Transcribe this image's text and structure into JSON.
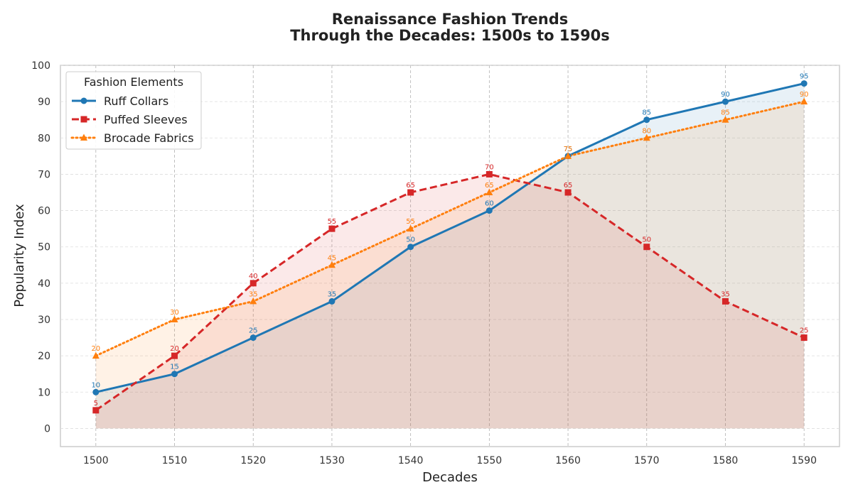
{
  "chart_data": {
    "type": "line",
    "title_lines": [
      "Renaissance Fashion Trends",
      "Through the Decades: 1500s to 1590s"
    ],
    "xlabel": "Decades",
    "ylabel": "Popularity Index",
    "x": [
      1500,
      1510,
      1520,
      1530,
      1540,
      1550,
      1560,
      1570,
      1580,
      1590
    ],
    "xlim": [
      1495.5,
      1594.5
    ],
    "ylim": [
      -5,
      100
    ],
    "yticks": [
      0,
      10,
      20,
      30,
      40,
      50,
      60,
      70,
      80,
      90,
      100
    ],
    "grid": true,
    "legend": {
      "title": "Fashion Elements",
      "placement": "top-left"
    },
    "series": [
      {
        "name": "Ruff Collars",
        "values": [
          10,
          15,
          25,
          35,
          50,
          60,
          75,
          85,
          90,
          95
        ],
        "color": "#1f77b4",
        "line_style": "solid",
        "marker": "circle",
        "fill_opacity": 0.1
      },
      {
        "name": "Puffed Sleeves",
        "values": [
          5,
          20,
          40,
          55,
          65,
          70,
          65,
          50,
          35,
          25
        ],
        "color": "#d62728",
        "line_style": "dashed",
        "marker": "square",
        "fill_opacity": 0.1
      },
      {
        "name": "Brocade Fabrics",
        "values": [
          20,
          30,
          35,
          45,
          55,
          65,
          75,
          80,
          85,
          90
        ],
        "color": "#ff7f0e",
        "line_style": "dotted",
        "marker": "triangle",
        "fill_opacity": 0.1
      }
    ]
  }
}
